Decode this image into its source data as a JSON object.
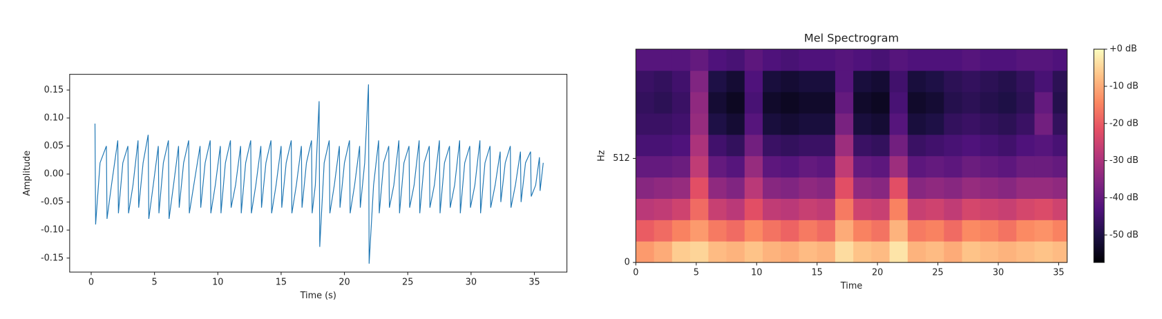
{
  "chart_data": [
    {
      "type": "line",
      "xlabel": "Time (s)",
      "ylabel": "Amplitude",
      "color": "#1f77b4",
      "xlim": [
        -1.7,
        37.57
      ],
      "ylim": [
        -0.175,
        0.178
      ],
      "xticks": [
        0,
        5,
        10,
        15,
        20,
        25,
        30,
        35
      ],
      "yticks": [
        -0.15,
        {
          "value": -0.1,
          "label": "-0.10"
        },
        -0.05,
        {
          "value": 0,
          "label": "0.00"
        },
        0.05,
        {
          "value": 0.1,
          "label": "0.10"
        },
        0.15
      ],
      "x": [
        0.3,
        0.35,
        0.7,
        1.2,
        1.25,
        1.6,
        2.1,
        2.15,
        2.5,
        2.9,
        2.95,
        3.3,
        3.7,
        3.75,
        4.1,
        4.5,
        4.55,
        4.9,
        5.3,
        5.35,
        5.7,
        6.1,
        6.15,
        6.5,
        6.9,
        6.95,
        7.3,
        7.7,
        7.75,
        8.1,
        8.6,
        8.65,
        9.0,
        9.4,
        9.45,
        9.8,
        10.2,
        10.25,
        10.6,
        11.0,
        11.05,
        11.4,
        11.8,
        11.85,
        12.2,
        12.6,
        12.65,
        13.0,
        13.4,
        13.45,
        13.8,
        14.2,
        14.25,
        14.6,
        15.0,
        15.05,
        15.4,
        15.8,
        15.85,
        16.2,
        16.6,
        16.65,
        17.0,
        17.4,
        17.45,
        17.7,
        18.0,
        18.05,
        18.4,
        18.8,
        18.85,
        19.2,
        19.6,
        19.65,
        20.0,
        20.4,
        20.45,
        20.8,
        21.2,
        21.25,
        21.6,
        21.9,
        21.95,
        22.3,
        22.7,
        22.75,
        23.1,
        23.5,
        23.55,
        23.9,
        24.3,
        24.35,
        24.7,
        25.1,
        25.15,
        25.5,
        25.9,
        25.95,
        26.3,
        26.7,
        26.75,
        27.1,
        27.5,
        27.55,
        27.9,
        28.3,
        28.35,
        28.7,
        29.1,
        29.15,
        29.5,
        29.9,
        29.95,
        30.3,
        30.7,
        30.75,
        31.1,
        31.5,
        31.55,
        31.9,
        32.3,
        32.35,
        32.7,
        33.1,
        33.15,
        33.5,
        33.9,
        33.95,
        34.3,
        34.7,
        34.75,
        35.1,
        35.4,
        35.45,
        35.7
      ],
      "values": [
        0.09,
        -0.09,
        0.02,
        0.05,
        -0.08,
        -0.02,
        0.06,
        -0.07,
        0.02,
        0.05,
        -0.07,
        -0.02,
        0.06,
        -0.06,
        0.02,
        0.07,
        -0.08,
        -0.02,
        0.05,
        -0.07,
        0.02,
        0.06,
        -0.08,
        -0.02,
        0.05,
        -0.06,
        0.02,
        0.06,
        -0.07,
        -0.02,
        0.05,
        -0.06,
        0.02,
        0.06,
        -0.07,
        -0.02,
        0.05,
        -0.07,
        0.02,
        0.06,
        -0.06,
        -0.02,
        0.05,
        -0.07,
        0.02,
        0.06,
        -0.07,
        -0.02,
        0.05,
        -0.06,
        0.02,
        0.06,
        -0.07,
        -0.02,
        0.05,
        -0.06,
        0.02,
        0.06,
        -0.07,
        -0.02,
        0.05,
        -0.06,
        0.02,
        0.06,
        -0.07,
        -0.02,
        0.13,
        -0.13,
        0.02,
        0.06,
        -0.07,
        -0.02,
        0.05,
        -0.06,
        0.02,
        0.06,
        -0.07,
        -0.02,
        0.05,
        -0.06,
        0.02,
        0.16,
        -0.16,
        -0.02,
        0.06,
        -0.07,
        0.02,
        0.05,
        -0.06,
        -0.02,
        0.06,
        -0.07,
        0.02,
        0.05,
        -0.06,
        -0.02,
        0.06,
        -0.07,
        0.02,
        0.05,
        -0.06,
        -0.02,
        0.06,
        -0.07,
        0.02,
        0.05,
        -0.06,
        -0.02,
        0.06,
        -0.07,
        0.02,
        0.05,
        -0.06,
        -0.02,
        0.06,
        -0.07,
        0.02,
        0.05,
        -0.06,
        -0.02,
        0.04,
        -0.05,
        0.02,
        0.05,
        -0.06,
        -0.02,
        0.04,
        -0.05,
        0.02,
        0.04,
        -0.04,
        -0.02,
        0.03,
        -0.03,
        0.02
      ]
    },
    {
      "type": "heatmap",
      "title": "Mel Spectrogram",
      "xlabel": "Time",
      "ylabel": "Hz",
      "xlim": [
        0,
        35.7
      ],
      "ylim": [
        0,
        1050
      ],
      "xticks": [
        0,
        5,
        10,
        15,
        20,
        25,
        30,
        35
      ],
      "yticks": [
        0,
        512
      ],
      "x_edges": [
        0,
        1.5,
        3,
        4.5,
        6,
        7.5,
        9,
        10.5,
        12,
        13.5,
        15,
        16.5,
        18,
        19.5,
        21,
        22.5,
        24,
        25.5,
        27,
        28.5,
        30,
        31.5,
        33,
        34.5,
        35.7
      ],
      "y_edges": [
        0,
        105,
        210,
        315,
        420,
        525,
        630,
        735,
        840,
        945,
        1050
      ],
      "values": [
        [
          -12,
          -10,
          -6,
          -5,
          -8,
          -9,
          -7,
          -9,
          -10,
          -8,
          -9,
          -4,
          -7,
          -8,
          -3,
          -9,
          -8,
          -10,
          -7,
          -8,
          -9,
          -8,
          -7,
          -8
        ],
        [
          -20,
          -18,
          -15,
          -12,
          -16,
          -18,
          -14,
          -17,
          -19,
          -16,
          -18,
          -10,
          -15,
          -17,
          -9,
          -16,
          -15,
          -18,
          -14,
          -15,
          -17,
          -14,
          -13,
          -15
        ],
        [
          -28,
          -27,
          -25,
          -18,
          -26,
          -28,
          -22,
          -27,
          -28,
          -26,
          -27,
          -16,
          -25,
          -26,
          -15,
          -26,
          -25,
          -27,
          -24,
          -25,
          -26,
          -24,
          -23,
          -25
        ],
        [
          -35,
          -34,
          -33,
          -22,
          -34,
          -36,
          -28,
          -35,
          -36,
          -34,
          -35,
          -22,
          -34,
          -35,
          -22,
          -35,
          -34,
          -35,
          -33,
          -34,
          -35,
          -33,
          -33,
          -34
        ],
        [
          -40,
          -40,
          -39,
          -27,
          -40,
          -42,
          -33,
          -41,
          -42,
          -40,
          -41,
          -27,
          -40,
          -41,
          -32,
          -41,
          -40,
          -41,
          -39,
          -40,
          -41,
          -39,
          -39,
          -40
        ],
        [
          -44,
          -44,
          -43,
          -30,
          -45,
          -47,
          -38,
          -46,
          -47,
          -46,
          -46,
          -32,
          -46,
          -47,
          -38,
          -46,
          -45,
          -44,
          -43,
          -44,
          -45,
          -43,
          -42,
          -44
        ],
        [
          -46,
          -46,
          -45,
          -33,
          -50,
          -52,
          -42,
          -51,
          -52,
          -51,
          -51,
          -37,
          -51,
          -52,
          -42,
          -51,
          -50,
          -47,
          -46,
          -47,
          -48,
          -46,
          -38,
          -47
        ],
        [
          -47,
          -48,
          -46,
          -34,
          -52,
          -54,
          -44,
          -53,
          -54,
          -53,
          -53,
          -40,
          -53,
          -54,
          -44,
          -53,
          -52,
          -49,
          -48,
          -49,
          -50,
          -48,
          -40,
          -49
        ],
        [
          -46,
          -47,
          -45,
          -36,
          -50,
          -52,
          -43,
          -51,
          -52,
          -51,
          -51,
          -42,
          -51,
          -52,
          -45,
          -51,
          -50,
          -48,
          -47,
          -48,
          -49,
          -47,
          -44,
          -48
        ],
        [
          -42,
          -42,
          -42,
          -40,
          -43,
          -44,
          -41,
          -43,
          -44,
          -43,
          -43,
          -42,
          -43,
          -44,
          -42,
          -43,
          -43,
          -43,
          -42,
          -43,
          -43,
          -42,
          -42,
          -43
        ]
      ],
      "zlim": [
        -57.4,
        0
      ],
      "colorbar_ticks": [
        {
          "value": 0,
          "label": "+0 dB"
        },
        {
          "value": -10,
          "label": "-10 dB"
        },
        {
          "value": -20,
          "label": "-20 dB"
        },
        {
          "value": -30,
          "label": "-30 dB"
        },
        {
          "value": -40,
          "label": "-40 dB"
        },
        {
          "value": -50,
          "label": "-50 dB"
        }
      ],
      "colors": [
        "#000004",
        "#1c1044",
        "#4f127b",
        "#812581",
        "#b5367a",
        "#e55064",
        "#fb8761",
        "#fec287",
        "#fcfdbf"
      ]
    }
  ]
}
